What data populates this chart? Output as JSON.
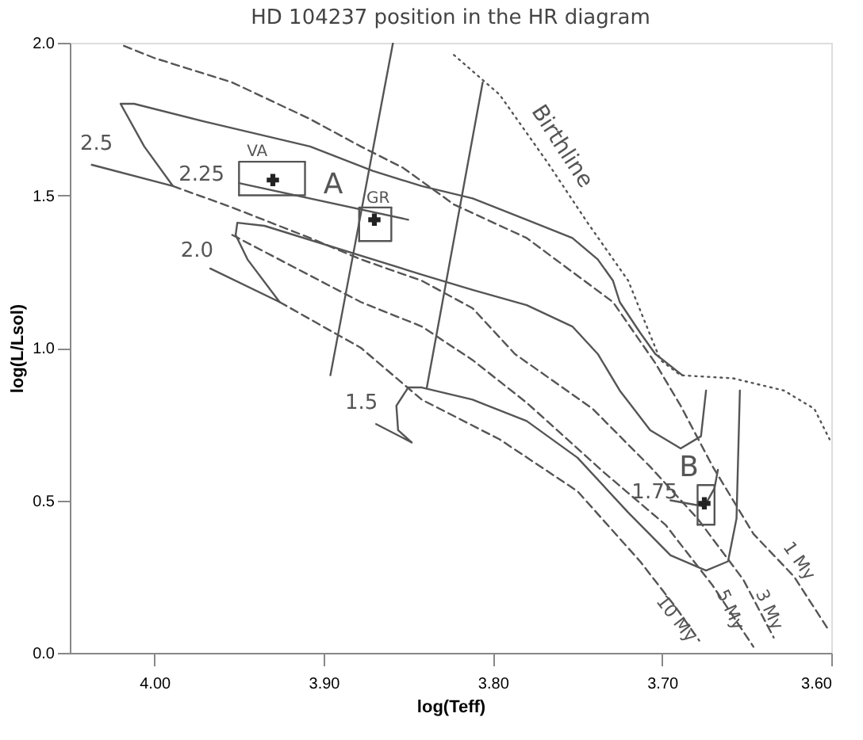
{
  "chart_data": {
    "type": "line",
    "title": "HD 104237 position in the HR diagram",
    "xlabel": "log(Teff)",
    "ylabel": "log(L/Lsol)",
    "xlim": [
      4.05,
      3.6
    ],
    "xticks": [
      {
        "value": 4.0,
        "label": "4.00"
      },
      {
        "value": 3.9,
        "label": "3.90"
      },
      {
        "value": 3.8,
        "label": "3.80"
      },
      {
        "value": 3.7,
        "label": "3.70"
      },
      {
        "value": 3.6,
        "label": "3.60"
      }
    ],
    "ylim": [
      0,
      2.0
    ],
    "yticks": [
      {
        "value": 0,
        "label": "0.0"
      },
      0.5,
      {
        "value": 1.0,
        "label": "1.0"
      },
      1.5,
      {
        "value": 2.0,
        "label": "2.0"
      }
    ],
    "grid": false,
    "series": [
      {
        "type": "line",
        "line_style": "solid",
        "color": "#555555",
        "x": [
          4.037,
          3.989,
          4.006,
          4.02,
          4.012,
          3.969,
          3.908,
          3.871,
          3.842,
          3.812,
          3.78,
          3.753,
          3.738,
          3.729,
          3.725,
          3.713,
          3.704,
          3.688
        ],
        "values": [
          1.6,
          1.53,
          1.66,
          1.8,
          1.8,
          1.74,
          1.66,
          1.58,
          1.53,
          1.49,
          1.42,
          1.36,
          1.29,
          1.22,
          1.15,
          1.05,
          0.98,
          0.91
        ]
      },
      {
        "type": "line",
        "line_style": "solid",
        "color": "#555555",
        "x": [
          3.95,
          3.85
        ],
        "values": [
          1.54,
          1.42
        ]
      },
      {
        "type": "line",
        "line_style": "solid",
        "color": "#555555",
        "x": [
          3.967,
          3.926,
          3.945,
          3.952,
          3.951,
          3.935,
          3.842,
          3.812,
          3.78,
          3.753,
          3.738,
          3.725,
          3.707,
          3.689,
          3.677,
          3.674
        ],
        "values": [
          1.26,
          1.15,
          1.29,
          1.37,
          1.41,
          1.4,
          1.24,
          1.19,
          1.14,
          1.07,
          0.98,
          0.86,
          0.73,
          0.67,
          0.71,
          0.86
        ]
      },
      {
        "type": "line",
        "line_style": "solid",
        "color": "#555555",
        "x": [
          3.848,
          3.856,
          3.857,
          3.85,
          3.842,
          3.812,
          3.78,
          3.75,
          3.72,
          3.695,
          3.674,
          3.661,
          3.656,
          3.654
        ],
        "values": [
          0.69,
          0.73,
          0.81,
          0.87,
          0.87,
          0.83,
          0.76,
          0.64,
          0.46,
          0.32,
          0.27,
          0.3,
          0.44,
          0.86
        ]
      },
      {
        "type": "line",
        "line_style": "solid",
        "color": "#555555",
        "x": [
          3.869,
          3.848
        ],
        "values": [
          0.75,
          0.69
        ]
      },
      {
        "type": "line",
        "line_style": "solid",
        "color": "#555555",
        "x": [
          3.695,
          3.675,
          3.669,
          3.667
        ],
        "values": [
          0.5,
          0.48,
          0.54,
          0.6
        ]
      },
      {
        "type": "line",
        "line_style": "solid",
        "color": "#555555",
        "x": [
          3.859,
          3.896
        ],
        "values": [
          2.0,
          0.91
        ]
      },
      {
        "type": "line",
        "line_style": "solid",
        "color": "#555555",
        "x": [
          3.806,
          3.839
        ],
        "values": [
          1.87,
          0.87
        ]
      },
      {
        "type": "line",
        "line_style": "dashed",
        "color": "#555555",
        "x": [
          4.018,
          4.0,
          3.954,
          3.908,
          3.878,
          3.853,
          3.823,
          3.78,
          3.729,
          3.704,
          3.689,
          3.67,
          3.646,
          3.622,
          3.601
        ],
        "values": [
          1.99,
          1.95,
          1.87,
          1.75,
          1.66,
          1.59,
          1.47,
          1.36,
          1.15,
          0.95,
          0.81,
          0.61,
          0.39,
          0.25,
          0.07
        ]
      },
      {
        "type": "line",
        "line_style": "dashed",
        "color": "#555555",
        "x": [
          3.989,
          3.954,
          3.908,
          3.878,
          3.842,
          3.812,
          3.787,
          3.741,
          3.707,
          3.679,
          3.652,
          3.634
        ],
        "values": [
          1.53,
          1.46,
          1.36,
          1.29,
          1.22,
          1.13,
          0.98,
          0.8,
          0.61,
          0.44,
          0.24,
          0.05
        ]
      },
      {
        "type": "line",
        "line_style": "dashed",
        "color": "#555555",
        "x": [
          3.954,
          3.878,
          3.842,
          3.812,
          3.78,
          3.734,
          3.698,
          3.67,
          3.646
        ],
        "values": [
          1.37,
          1.15,
          1.07,
          0.96,
          0.82,
          0.59,
          0.42,
          0.22,
          0.02
        ]
      },
      {
        "type": "line",
        "line_style": "dashed",
        "color": "#555555",
        "x": [
          3.926,
          3.878,
          3.842,
          3.796,
          3.75,
          3.713,
          3.692,
          3.678
        ],
        "values": [
          1.15,
          1.0,
          0.83,
          0.7,
          0.53,
          0.3,
          0.15,
          0.04
        ]
      },
      {
        "type": "line",
        "line_style": "dotted",
        "color": "#555555",
        "x": [
          3.823,
          3.796,
          3.768,
          3.744,
          3.72,
          3.701,
          3.689,
          3.658,
          3.628,
          3.61,
          3.601
        ],
        "values": [
          1.96,
          1.83,
          1.61,
          1.41,
          1.22,
          0.96,
          0.91,
          0.9,
          0.86,
          0.8,
          0.7
        ]
      },
      {
        "line_style": "solid",
        "color": "#555555",
        "x": [
          3.95,
          3.911,
          3.911
        ],
        "values": [
          1.5,
          1.5,
          1.61
        ]
      },
      {
        "line_style": "solid",
        "color": "#555555",
        "x": [
          3.911,
          3.95,
          3.95
        ],
        "values": [
          1.61,
          1.61,
          1.5
        ]
      },
      {
        "line_style": "solid",
        "color": "#555555",
        "x": [
          3.879,
          3.86,
          3.86
        ],
        "values": [
          1.35,
          1.35,
          1.46
        ]
      },
      {
        "line_style": "solid",
        "color": "#555555",
        "x": [
          3.86,
          3.879,
          3.879
        ],
        "values": [
          1.46,
          1.46,
          1.35
        ]
      },
      {
        "line_style": "solid",
        "color": "#555555",
        "x": [
          3.679,
          3.669,
          3.669
        ],
        "values": [
          0.42,
          0.42,
          0.55
        ]
      },
      {
        "line_style": "solid",
        "color": "#555555",
        "x": [
          3.669,
          3.679,
          3.679
        ],
        "values": [
          0.55,
          0.55,
          0.42
        ]
      },
      {
        "type": "scatter",
        "marker": "cross",
        "color": "#222222",
        "x": [
          3.93,
          3.87,
          3.675
        ],
        "values": [
          1.55,
          1.42,
          0.49
        ]
      }
    ],
    "annotations": [
      "2.5",
      "2.25",
      "2.0",
      "1.5",
      "1.75",
      "A",
      "B",
      "VA",
      "GR",
      "Birthline",
      "1 My",
      {
        "text": "3 My",
        "x": 3.637,
        "y": 0.14
      },
      {
        "text": "5 My",
        "x": 3.66,
        "y": 0.14
      },
      {
        "text": "10 My",
        "x": 3.692,
        "y": 0.11
      }
    ]
  }
}
